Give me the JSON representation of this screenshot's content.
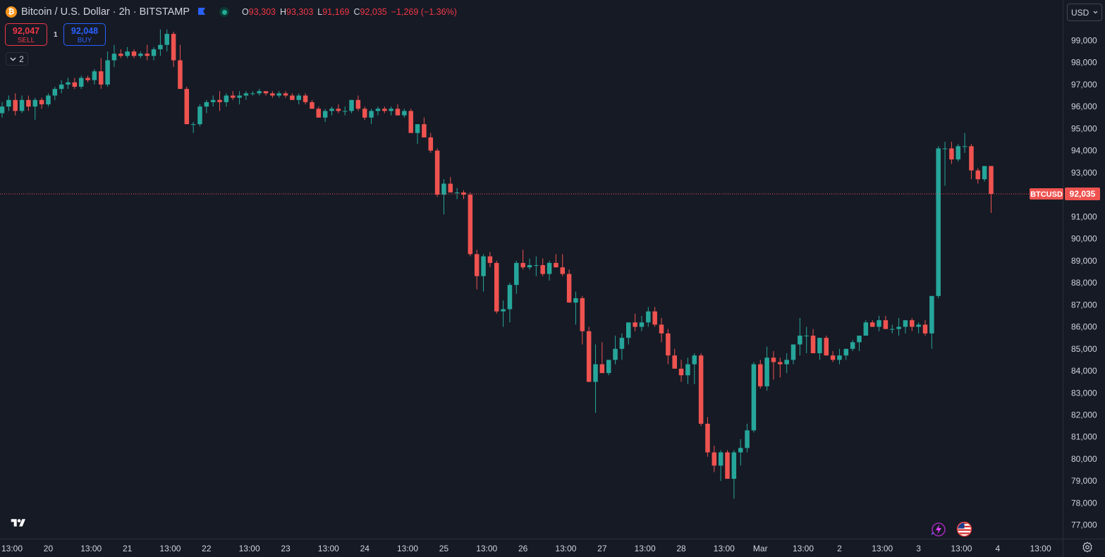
{
  "header": {
    "coin_glyph": "₿",
    "symbol_title": "Bitcoin / U.S. Dollar · 2h · BITSTAMP",
    "ohlc": {
      "o_label": "O",
      "o_value": "93,303",
      "h_label": "H",
      "h_value": "93,303",
      "l_label": "L",
      "l_value": "91,169",
      "c_label": "C",
      "c_value": "92,035",
      "change": "−1,269 (−1.36%)"
    }
  },
  "trade": {
    "sell_price": "92,047",
    "sell_label": "SELL",
    "buy_price": "92,048",
    "buy_label": "BUY",
    "quantity": "1"
  },
  "layers": {
    "count": "2"
  },
  "currency": {
    "selected": "USD"
  },
  "icons": {
    "logo": "tradingview-logo-icon",
    "flash": "lightning-icon",
    "flag": "us-flag-icon",
    "settings": "gear-icon",
    "chevron": "chevron-down-icon",
    "bookmark": "flag-icon"
  },
  "colors": {
    "background": "#161a25",
    "up": "#26a69a",
    "down": "#ef5350",
    "text": "#d1d4dc",
    "grid_border": "#2a2e39",
    "price_line": "#ef5350"
  },
  "chart_data": {
    "type": "candlestick",
    "symbol": "BTCUSD",
    "interval": "2h",
    "last_price": 92035,
    "last_price_label": "92,035",
    "price_tag_label": "BTCUSD",
    "ylim": [
      76600,
      100100
    ],
    "y_ticks": [
      77000,
      78000,
      79000,
      80000,
      81000,
      82000,
      83000,
      84000,
      85000,
      86000,
      87000,
      88000,
      89000,
      90000,
      91000,
      92000,
      93000,
      94000,
      95000,
      96000,
      97000,
      98000,
      99000
    ],
    "y_tick_labels": [
      "77,000",
      "78,000",
      "79,000",
      "80,000",
      "81,000",
      "82,000",
      "83,000",
      "84,000",
      "85,000",
      "86,000",
      "87,000",
      "88,000",
      "89,000",
      "90,000",
      "91,000",
      "92,000",
      "93,000",
      "94,000",
      "95,000",
      "96,000",
      "97,000",
      "98,000",
      "99,000"
    ],
    "x_tick_labels": [
      "13:00",
      "20",
      "13:00",
      "21",
      "13:00",
      "22",
      "13:00",
      "23",
      "13:00",
      "24",
      "13:00",
      "25",
      "13:00",
      "26",
      "13:00",
      "27",
      "13:00",
      "28",
      "13:00",
      "Mar",
      "13:00",
      "2",
      "13:00",
      "3",
      "13:00",
      "4",
      "13:00"
    ],
    "x_tick_bar_index": [
      1.5,
      7,
      13.5,
      19,
      25.5,
      31,
      37.5,
      43,
      49.5,
      55,
      61.5,
      67,
      73.5,
      79,
      85.5,
      91,
      97.5,
      103,
      109.5,
      115,
      121.5,
      127,
      133.5,
      139,
      145.5,
      151,
      157.5
    ],
    "grid": false,
    "candles": [
      [
        95700,
        96200,
        95500,
        96000
      ],
      [
        96000,
        96500,
        95800,
        96300
      ],
      [
        96300,
        96600,
        95600,
        95800
      ],
      [
        95800,
        96500,
        95700,
        96300
      ],
      [
        96300,
        96500,
        95800,
        96000
      ],
      [
        96000,
        96400,
        95400,
        96300
      ],
      [
        96300,
        96400,
        95900,
        96100
      ],
      [
        96100,
        96600,
        96000,
        96500
      ],
      [
        96500,
        96900,
        96300,
        96800
      ],
      [
        96800,
        97200,
        96600,
        97000
      ],
      [
        97000,
        97300,
        96800,
        97100
      ],
      [
        97100,
        97300,
        96800,
        96900
      ],
      [
        96900,
        97400,
        96800,
        97300
      ],
      [
        97300,
        97400,
        97100,
        97200
      ],
      [
        97200,
        97700,
        97000,
        97600
      ],
      [
        97600,
        98200,
        96800,
        97000
      ],
      [
        97000,
        98500,
        96900,
        98100
      ],
      [
        98100,
        98800,
        97800,
        98400
      ],
      [
        98400,
        98600,
        98200,
        98300
      ],
      [
        98300,
        98700,
        98200,
        98500
      ],
      [
        98500,
        98600,
        98200,
        98300
      ],
      [
        98300,
        98500,
        98200,
        98400
      ],
      [
        98400,
        98800,
        98100,
        98300
      ],
      [
        98300,
        98700,
        98100,
        98600
      ],
      [
        98600,
        99500,
        98300,
        98800
      ],
      [
        98800,
        99500,
        98500,
        99300
      ],
      [
        99300,
        99400,
        97800,
        98100
      ],
      [
        98100,
        98800,
        96900,
        96800
      ],
      [
        96800,
        96900,
        95200,
        95200
      ],
      [
        95200,
        95300,
        94800,
        95200
      ],
      [
        95200,
        96100,
        95100,
        96000
      ],
      [
        96000,
        96300,
        95700,
        96200
      ],
      [
        96200,
        96500,
        96000,
        96300
      ],
      [
        96300,
        96700,
        95800,
        96200
      ],
      [
        96200,
        96600,
        96000,
        96500
      ],
      [
        96500,
        96700,
        96300,
        96400
      ],
      [
        96400,
        96700,
        96100,
        96500
      ],
      [
        96500,
        96700,
        96300,
        96600
      ],
      [
        96600,
        96700,
        96500,
        96600
      ],
      [
        96600,
        96800,
        96500,
        96700
      ],
      [
        96700,
        96700,
        96500,
        96600
      ],
      [
        96600,
        96700,
        96400,
        96500
      ],
      [
        96500,
        96700,
        96400,
        96600
      ],
      [
        96600,
        96700,
        96400,
        96500
      ],
      [
        96500,
        96600,
        96300,
        96300
      ],
      [
        96300,
        96600,
        96100,
        96500
      ],
      [
        96500,
        96600,
        96100,
        96200
      ],
      [
        96200,
        96300,
        95900,
        95900
      ],
      [
        95900,
        96000,
        95500,
        95500
      ],
      [
        95500,
        95900,
        95300,
        95800
      ],
      [
        95800,
        96000,
        95600,
        95900
      ],
      [
        95900,
        96100,
        95700,
        95800
      ],
      [
        95800,
        96000,
        95600,
        95800
      ],
      [
        95800,
        96300,
        95700,
        96300
      ],
      [
        96300,
        96500,
        95800,
        95900
      ],
      [
        95900,
        96000,
        95400,
        95500
      ],
      [
        95500,
        95900,
        95200,
        95800
      ],
      [
        95800,
        96000,
        95600,
        95900
      ],
      [
        95900,
        96000,
        95700,
        95800
      ],
      [
        95800,
        96000,
        95600,
        95900
      ],
      [
        95900,
        96100,
        95600,
        95600
      ],
      [
        95600,
        95900,
        95500,
        95800
      ],
      [
        95800,
        95900,
        94800,
        94800
      ],
      [
        94800,
        95200,
        94300,
        95200
      ],
      [
        95200,
        95500,
        94600,
        94600
      ],
      [
        94600,
        94800,
        93900,
        94000
      ],
      [
        94000,
        94100,
        91900,
        92000
      ],
      [
        92000,
        92700,
        91100,
        92500
      ],
      [
        92500,
        92800,
        92200,
        92100
      ],
      [
        92100,
        92300,
        91800,
        92100
      ],
      [
        92100,
        92200,
        91800,
        92000
      ],
      [
        92000,
        92100,
        89200,
        89300
      ],
      [
        89300,
        89500,
        87700,
        88300
      ],
      [
        88300,
        89300,
        87600,
        89200
      ],
      [
        89200,
        89400,
        88700,
        88900
      ],
      [
        88900,
        89000,
        86600,
        86700
      ],
      [
        86700,
        87200,
        86000,
        86800
      ],
      [
        86800,
        88000,
        86200,
        87900
      ],
      [
        87900,
        89000,
        87500,
        88900
      ],
      [
        88900,
        89500,
        88600,
        88700
      ],
      [
        88700,
        89100,
        88600,
        88800
      ],
      [
        88800,
        89200,
        88300,
        88800
      ],
      [
        88800,
        89100,
        88300,
        88400
      ],
      [
        88400,
        89000,
        88100,
        88900
      ],
      [
        88900,
        89300,
        88700,
        88700
      ],
      [
        88700,
        89300,
        88300,
        88400
      ],
      [
        88400,
        88600,
        87100,
        87100
      ],
      [
        87100,
        87600,
        86100,
        87300
      ],
      [
        87300,
        87400,
        85200,
        85800
      ],
      [
        85800,
        86000,
        83500,
        83500
      ],
      [
        83500,
        85200,
        82100,
        84300
      ],
      [
        84300,
        85300,
        83900,
        83900
      ],
      [
        83900,
        84500,
        83800,
        84500
      ],
      [
        84500,
        85600,
        84300,
        85000
      ],
      [
        85000,
        85700,
        84500,
        85500
      ],
      [
        85500,
        86100,
        85200,
        86200
      ],
      [
        86200,
        86600,
        85800,
        86000
      ],
      [
        86000,
        86500,
        85800,
        86200
      ],
      [
        86200,
        86900,
        86000,
        86700
      ],
      [
        86700,
        86900,
        86000,
        86100
      ],
      [
        86100,
        86400,
        85300,
        85700
      ],
      [
        85700,
        85900,
        84300,
        84700
      ],
      [
        84700,
        85000,
        84100,
        84100
      ],
      [
        84100,
        84500,
        83500,
        83800
      ],
      [
        83800,
        84600,
        83400,
        84300
      ],
      [
        84300,
        84800,
        83400,
        84700
      ],
      [
        84700,
        84800,
        81500,
        81600
      ],
      [
        81600,
        81900,
        80100,
        80300
      ],
      [
        80300,
        80600,
        79400,
        79700
      ],
      [
        79700,
        80400,
        79000,
        80300
      ],
      [
        80300,
        80400,
        79100,
        79100
      ],
      [
        79100,
        80400,
        78200,
        80300
      ],
      [
        80300,
        80900,
        79700,
        80500
      ],
      [
        80500,
        81600,
        80300,
        81300
      ],
      [
        81300,
        84400,
        81200,
        84300
      ],
      [
        84300,
        84500,
        83200,
        83300
      ],
      [
        83300,
        85100,
        83100,
        84600
      ],
      [
        84600,
        84900,
        83600,
        84400
      ],
      [
        84400,
        84600,
        83700,
        84300
      ],
      [
        84300,
        84800,
        83900,
        84500
      ],
      [
        84500,
        85200,
        84300,
        85200
      ],
      [
        85200,
        86400,
        84700,
        85600
      ],
      [
        85600,
        86000,
        84800,
        85600
      ],
      [
        85600,
        85900,
        84800,
        84800
      ],
      [
        84800,
        85500,
        84500,
        85500
      ],
      [
        85500,
        85600,
        84700,
        84700
      ],
      [
        84700,
        84900,
        84400,
        84500
      ],
      [
        84500,
        85000,
        84300,
        84700
      ],
      [
        84700,
        85000,
        84500,
        85000
      ],
      [
        85000,
        85400,
        84900,
        85300
      ],
      [
        85300,
        85600,
        84900,
        85600
      ],
      [
        85600,
        86300,
        85600,
        86200
      ],
      [
        86200,
        86300,
        86000,
        86000
      ],
      [
        86000,
        86500,
        85800,
        86300
      ],
      [
        86300,
        86500,
        85900,
        85900
      ],
      [
        85900,
        86100,
        85700,
        85900
      ],
      [
        85900,
        86400,
        85600,
        86000
      ],
      [
        86000,
        86200,
        85700,
        86300
      ],
      [
        86300,
        86400,
        85800,
        86000
      ],
      [
        86000,
        86200,
        85700,
        86100
      ],
      [
        86100,
        86300,
        85600,
        85700
      ],
      [
        85700,
        87400,
        85000,
        87400
      ],
      [
        87400,
        94200,
        87300,
        94100
      ],
      [
        94100,
        94400,
        92400,
        94100
      ],
      [
        94100,
        94400,
        93400,
        93600
      ],
      [
        93600,
        94300,
        93500,
        94200
      ],
      [
        94200,
        94800,
        93900,
        94200
      ],
      [
        94200,
        94300,
        92700,
        93100
      ],
      [
        93100,
        93200,
        92500,
        92700
      ],
      [
        92700,
        93300,
        92600,
        93300
      ],
      [
        93300,
        93303,
        91169,
        92035
      ]
    ]
  }
}
